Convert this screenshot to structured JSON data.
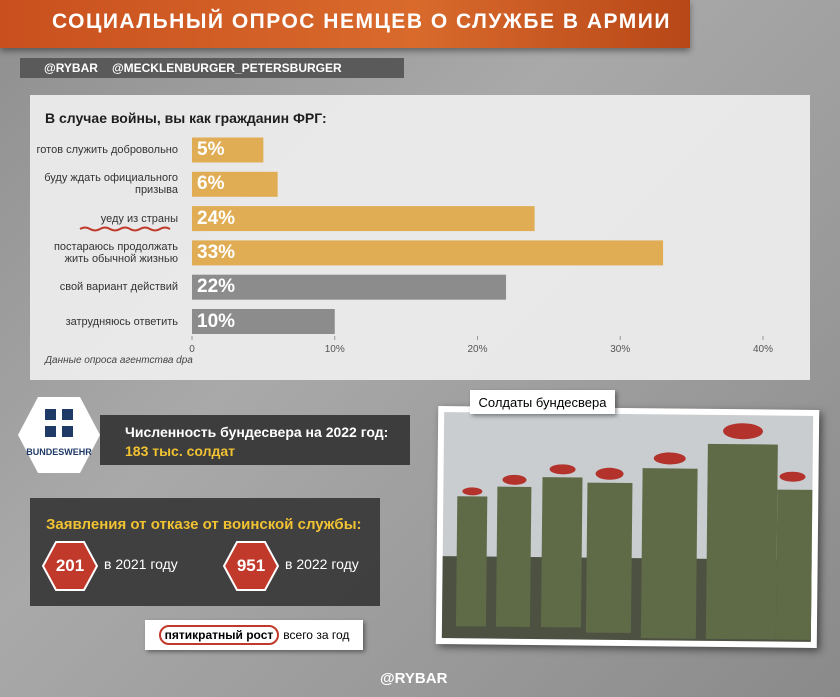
{
  "header": {
    "title": "СОЦИАЛЬНЫЙ ОПРОС НЕМЦЕВ О СЛУЖБЕ В АРМИИ",
    "handles": [
      "@RYBAR",
      "@MECKLENBURGER_PETERSBURGER"
    ]
  },
  "chart_data": {
    "type": "barh",
    "title": "В случае войны, вы как гражданин ФРГ:",
    "categories": [
      "готов служить добровольно",
      "буду ждать официального призыва",
      "уеду из страны",
      "постараюсь продолжать жить обычной жизнью",
      "свой вариант действий",
      "затрудняюсь ответить"
    ],
    "values": [
      5,
      6,
      24,
      33,
      22,
      10
    ],
    "value_labels": [
      "5%",
      "6%",
      "24%",
      "33%",
      "22%",
      "10%"
    ],
    "colors": [
      "#e0ad55",
      "#e0ad55",
      "#e0ad55",
      "#e0ad55",
      "#8c8c8c",
      "#8c8c8c"
    ],
    "xlim": [
      0,
      40
    ],
    "xticks": [
      0,
      {
        "value": 10,
        "label": "10%"
      },
      {
        "value": 20,
        "label": "20%"
      },
      {
        "value": 30,
        "label": "30%"
      },
      {
        "value": 40,
        "label": "40%"
      }
    ],
    "source": "Данные опроса агентства dpa"
  },
  "bundeswehr": {
    "logo": "BUNDESWEHR",
    "label": "Численность бундесвера на 2022 год:",
    "value": "183 тыс. солдат"
  },
  "refusals": {
    "title": "Заявления от отказе от воинской службы:",
    "items": [
      {
        "value": 201,
        "label": "в 2021 году"
      },
      {
        "value": 951,
        "label": "в 2022 году"
      }
    ],
    "note_emph": "пятикратный рост",
    "note": "всего за год"
  },
  "photo": {
    "caption": "Солдаты бундесвера"
  },
  "footer": {
    "handle": "@RYBAR"
  }
}
